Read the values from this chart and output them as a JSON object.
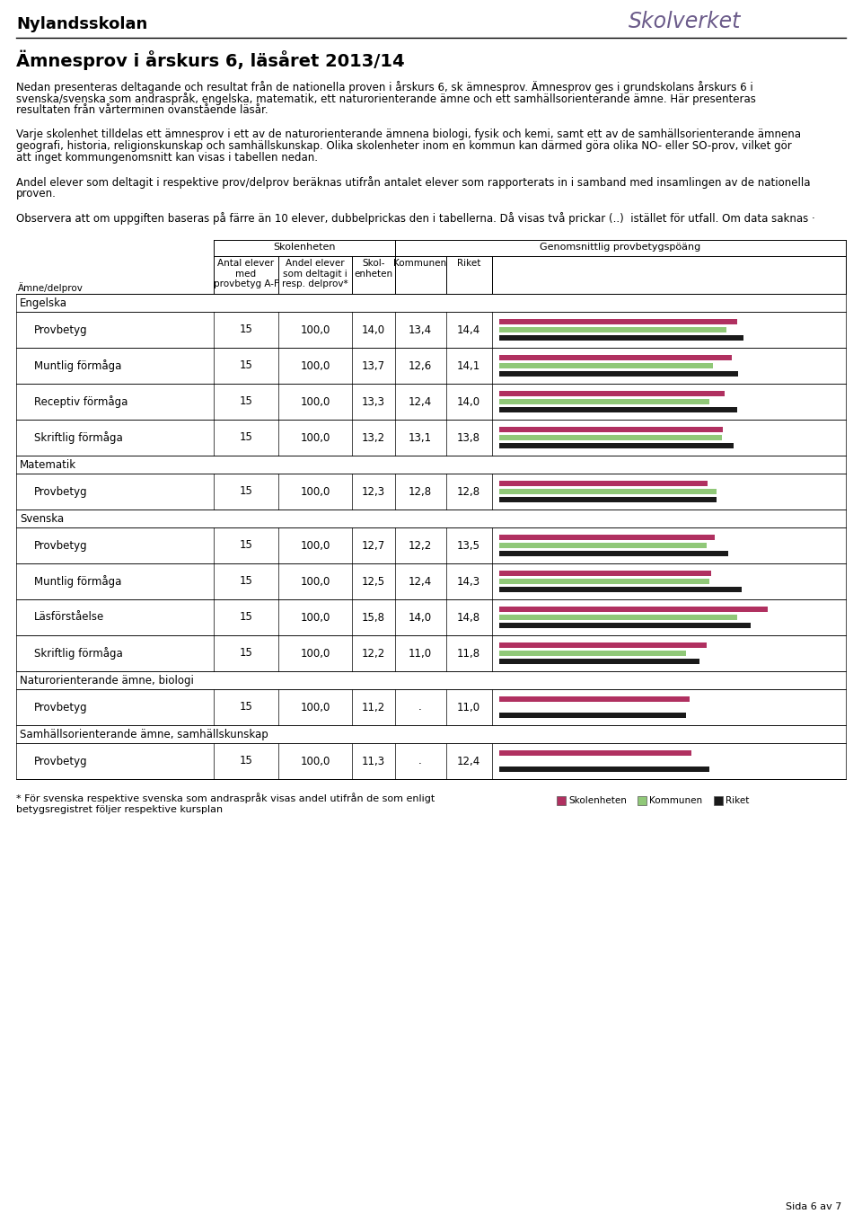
{
  "school_name": "Nylandsskolan",
  "title": "Ämnesprov i årskurs 6, läsåret 2013/14",
  "intro_text1": "Nedan presenteras deltagande och resultat från de nationella proven i årskurs 6, sk ämnesprov. Ämnesprov ges i grundskolans årskurs 6 i svenska/svenska som andraspråk, engelska, matematik, ett naturorienterande ämne och ett samhällsorienterande ämne. Här presenteras resultaten från vårterminen ovanstående läsår.",
  "intro_text2": "Varje skolenhet tilldelas ett ämnesprov i ett av de naturorienterande ämnena biologi, fysik och kemi, samt ett av de samhällsorienterande ämnena geografi, historia, religionskunskap och samhällskunskap. Olika skolenheter inom en kommun kan därmed göra olika NO- eller SO-prov, vilket gör att inget kommungenomsnitt kan visas i tabellen nedan.",
  "intro_text3": "Andel elever som deltagit i respektive prov/delprov beräknas utifrån antalet elever som rapporterats in i samband med insamlingen av de nationella proven.",
  "intro_text4": "Observera att om uppgiften baseras på färre än 10 elever, dubbelprickas den i tabellerna. Då visas två prickar (..)  istället för utfall. Om data saknas ·",
  "col_header1": "Skolenheten",
  "col_header2": "Genomsnittlig provbetygspöäng",
  "col_sub1": "Antal elever\nmed\nprovbetyg A-F",
  "col_sub2": "Andel elever\nsom deltagit i\nresp. delprov*",
  "col_sub3": "Skol-\nenheten",
  "col_sub4": "Kommunen",
  "col_sub5": "Riket",
  "row_label": "Ämne/delprov",
  "sections": [
    {
      "section_name": "Engelska",
      "rows": [
        {
          "name": "Provbetyg",
          "antal": "15",
          "andel": "100,0",
          "skol": "14,0",
          "kom": "13,4",
          "riket": "14,4",
          "bar_skol": 14.0,
          "bar_kom": 13.4,
          "bar_riket": 14.4
        },
        {
          "name": "Muntlig förmåga",
          "antal": "15",
          "andel": "100,0",
          "skol": "13,7",
          "kom": "12,6",
          "riket": "14,1",
          "bar_skol": 13.7,
          "bar_kom": 12.6,
          "bar_riket": 14.1
        },
        {
          "name": "Receptiv förmåga",
          "antal": "15",
          "andel": "100,0",
          "skol": "13,3",
          "kom": "12,4",
          "riket": "14,0",
          "bar_skol": 13.3,
          "bar_kom": 12.4,
          "bar_riket": 14.0
        },
        {
          "name": "Skriftlig förmåga",
          "antal": "15",
          "andel": "100,0",
          "skol": "13,2",
          "kom": "13,1",
          "riket": "13,8",
          "bar_skol": 13.2,
          "bar_kom": 13.1,
          "bar_riket": 13.8
        }
      ]
    },
    {
      "section_name": "Matematik",
      "rows": [
        {
          "name": "Provbetyg",
          "antal": "15",
          "andel": "100,0",
          "skol": "12,3",
          "kom": "12,8",
          "riket": "12,8",
          "bar_skol": 12.3,
          "bar_kom": 12.8,
          "bar_riket": 12.8
        }
      ]
    },
    {
      "section_name": "Svenska",
      "rows": [
        {
          "name": "Provbetyg",
          "antal": "15",
          "andel": "100,0",
          "skol": "12,7",
          "kom": "12,2",
          "riket": "13,5",
          "bar_skol": 12.7,
          "bar_kom": 12.2,
          "bar_riket": 13.5
        },
        {
          "name": "Muntlig förmåga",
          "antal": "15",
          "andel": "100,0",
          "skol": "12,5",
          "kom": "12,4",
          "riket": "14,3",
          "bar_skol": 12.5,
          "bar_kom": 12.4,
          "bar_riket": 14.3
        },
        {
          "name": "Läsförståelse",
          "antal": "15",
          "andel": "100,0",
          "skol": "15,8",
          "kom": "14,0",
          "riket": "14,8",
          "bar_skol": 15.8,
          "bar_kom": 14.0,
          "bar_riket": 14.8
        },
        {
          "name": "Skriftlig förmåga",
          "antal": "15",
          "andel": "100,0",
          "skol": "12,2",
          "kom": "11,0",
          "riket": "11,8",
          "bar_skol": 12.2,
          "bar_kom": 11.0,
          "bar_riket": 11.8
        }
      ]
    },
    {
      "section_name": "Naturorienterande ämne, biologi",
      "rows": [
        {
          "name": "Provbetyg",
          "antal": "15",
          "andel": "100,0",
          "skol": "11,2",
          "kom": ".",
          "riket": "11,0",
          "bar_skol": 11.2,
          "bar_kom": null,
          "bar_riket": 11.0
        }
      ]
    },
    {
      "section_name": "Samhällsorienterande ämne, samhällskunskap",
      "rows": [
        {
          "name": "Provbetyg",
          "antal": "15",
          "andel": "100,0",
          "skol": "11,3",
          "kom": ".",
          "riket": "12,4",
          "bar_skol": 11.3,
          "bar_kom": null,
          "bar_riket": 12.4
        }
      ]
    }
  ],
  "footer_note": "* För svenska respektive svenska som andraspråk visas andel utifrån de som enligt\nbetygsregistret följer respektive kursplan",
  "page_note": "Sida 6 av 7",
  "legend_labels": [
    "Skolenheten",
    "Kommunen",
    "Riket"
  ],
  "color_skol": "#b03060",
  "color_kom": "#90c878",
  "color_riket": "#1a1a1a",
  "bar_max": 20.0,
  "background_color": "#ffffff"
}
